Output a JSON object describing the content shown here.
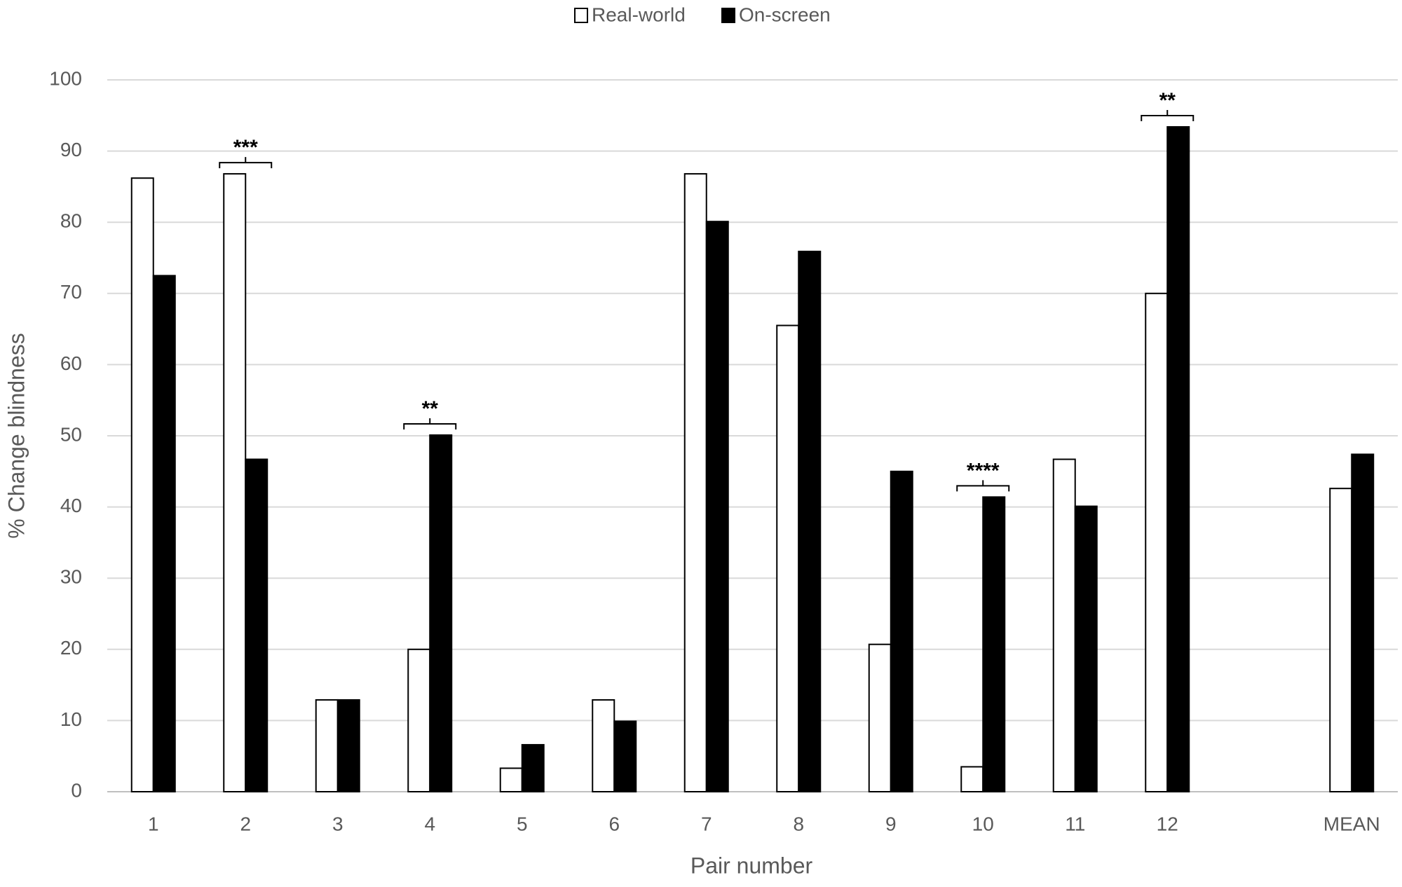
{
  "chart_data": {
    "type": "bar",
    "x_label": "Pair number",
    "y_label": "% Change blindness",
    "categories": [
      "1",
      "2",
      "3",
      "4",
      "5",
      "6",
      "7",
      "8",
      "9",
      "10",
      "11",
      "12",
      null,
      "MEAN"
    ],
    "series": [
      {
        "name": "Real-world",
        "color": "#ffffff",
        "values": [
          86.2,
          86.8,
          12.9,
          20.0,
          3.3,
          12.9,
          86.8,
          65.5,
          20.7,
          3.5,
          46.7,
          70.0,
          null,
          42.6
        ]
      },
      {
        "name": "On-screen",
        "color": "#000000",
        "values": [
          72.5,
          46.7,
          12.9,
          50.1,
          6.6,
          9.9,
          80.1,
          75.9,
          45.0,
          41.4,
          40.1,
          93.4,
          null,
          47.4
        ]
      }
    ],
    "annotations": [
      {
        "category": "2",
        "text": "***"
      },
      {
        "category": "4",
        "text": "**"
      },
      {
        "category": "10",
        "text": "****"
      },
      {
        "category": "12",
        "text": "**"
      }
    ],
    "ylim": [
      0,
      100
    ],
    "yticks": [
      0,
      10,
      20,
      30,
      40,
      50,
      60,
      70,
      80,
      90,
      100
    ],
    "grid": true,
    "legend": "top"
  }
}
